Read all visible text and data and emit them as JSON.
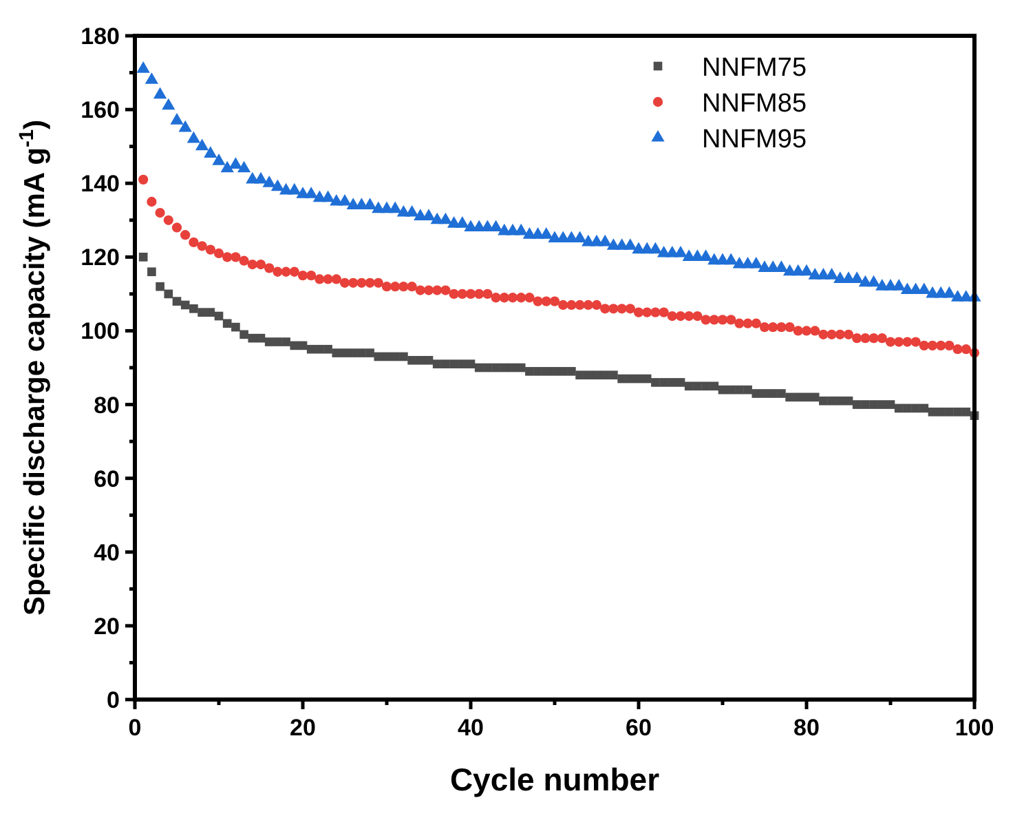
{
  "chart_data": {
    "type": "scatter",
    "xlabel": "Cycle number",
    "ylabel": "Specific discharge capacity (mA g$^{-1}$)",
    "xlim": [
      0,
      100
    ],
    "ylim": [
      0,
      180
    ],
    "xticks": [
      0,
      {
        "value": 10,
        "label": null
      },
      20,
      {
        "value": 30,
        "label": null
      },
      40,
      {
        "value": 50,
        "label": null
      },
      60,
      {
        "value": 70,
        "label": null
      },
      80,
      {
        "value": 90,
        "label": null
      },
      100
    ],
    "yticks": [
      0,
      {
        "value": 10,
        "label": null
      },
      20,
      {
        "value": 30,
        "label": null
      },
      40,
      {
        "value": 50,
        "label": null
      },
      60,
      {
        "value": 70,
        "label": null
      },
      80,
      {
        "value": 90,
        "label": null
      },
      100,
      {
        "value": 110,
        "label": null
      },
      120,
      {
        "value": 130,
        "label": null
      },
      140,
      {
        "value": 150,
        "label": null
      },
      160,
      {
        "value": 170,
        "label": null
      },
      180
    ],
    "grid": false,
    "legend": "top right",
    "x": [
      1,
      2,
      3,
      4,
      5,
      6,
      7,
      8,
      9,
      10,
      11,
      12,
      13,
      14,
      15,
      16,
      17,
      18,
      19,
      20,
      21,
      22,
      23,
      24,
      25,
      26,
      27,
      28,
      29,
      30,
      31,
      32,
      33,
      34,
      35,
      36,
      37,
      38,
      39,
      40,
      41,
      42,
      43,
      44,
      45,
      46,
      47,
      48,
      49,
      50,
      51,
      52,
      53,
      54,
      55,
      56,
      57,
      58,
      59,
      60,
      61,
      62,
      63,
      64,
      65,
      66,
      67,
      68,
      69,
      70,
      71,
      72,
      73,
      74,
      75,
      76,
      77,
      78,
      79,
      80,
      81,
      82,
      83,
      84,
      85,
      86,
      87,
      88,
      89,
      90,
      91,
      92,
      93,
      94,
      95,
      96,
      97,
      98,
      99,
      100
    ],
    "series": [
      {
        "name": "NNFM75",
        "color": "#4d4d4d",
        "marker": "square",
        "values": [
          120,
          116,
          112,
          110,
          108,
          107,
          106,
          105,
          105,
          104,
          102,
          101,
          99,
          98,
          98,
          97,
          97,
          97,
          96,
          96,
          95,
          95,
          95,
          94,
          94,
          94,
          94,
          94,
          93,
          93,
          93,
          93,
          92,
          92,
          92,
          91,
          91,
          91,
          91,
          91,
          90,
          90,
          90,
          90,
          90,
          90,
          89,
          89,
          89,
          89,
          89,
          89,
          88,
          88,
          88,
          88,
          88,
          87,
          87,
          87,
          87,
          86,
          86,
          86,
          86,
          85,
          85,
          85,
          85,
          84,
          84,
          84,
          84,
          83,
          83,
          83,
          83,
          82,
          82,
          82,
          82,
          81,
          81,
          81,
          81,
          80,
          80,
          80,
          80,
          80,
          79,
          79,
          79,
          79,
          78,
          78,
          78,
          78,
          78,
          77
        ]
      },
      {
        "name": "NNFM85",
        "color": "#e8403a",
        "marker": "circle",
        "values": [
          141,
          135,
          132,
          130,
          128,
          126,
          124,
          123,
          122,
          121,
          120,
          120,
          119,
          118,
          118,
          117,
          116,
          116,
          116,
          115,
          115,
          114,
          114,
          114,
          113,
          113,
          113,
          113,
          113,
          112,
          112,
          112,
          112,
          111,
          111,
          111,
          111,
          110,
          110,
          110,
          110,
          110,
          109,
          109,
          109,
          109,
          109,
          108,
          108,
          108,
          107,
          107,
          107,
          107,
          107,
          106,
          106,
          106,
          106,
          105,
          105,
          105,
          105,
          104,
          104,
          104,
          104,
          103,
          103,
          103,
          103,
          102,
          102,
          102,
          101,
          101,
          101,
          101,
          100,
          100,
          100,
          99,
          99,
          99,
          99,
          98,
          98,
          98,
          98,
          97,
          97,
          97,
          97,
          96,
          96,
          96,
          96,
          95,
          95,
          94
        ]
      },
      {
        "name": "NNFM95",
        "color": "#1f6fd6",
        "marker": "triangle",
        "values": [
          171,
          168,
          164,
          161,
          157,
          155,
          152,
          150,
          148,
          146,
          144,
          145,
          144,
          141,
          141,
          140,
          139,
          138,
          138,
          137,
          137,
          136,
          136,
          135,
          135,
          134,
          134,
          134,
          133,
          133,
          133,
          132,
          132,
          131,
          131,
          130,
          130,
          129,
          129,
          128,
          128,
          128,
          128,
          127,
          127,
          127,
          126,
          126,
          126,
          125,
          125,
          125,
          125,
          124,
          124,
          124,
          123,
          123,
          123,
          122,
          122,
          122,
          121,
          121,
          121,
          120,
          120,
          120,
          119,
          119,
          119,
          118,
          118,
          118,
          117,
          117,
          117,
          116,
          116,
          116,
          115,
          115,
          115,
          114,
          114,
          114,
          113,
          113,
          112,
          112,
          112,
          111,
          111,
          111,
          110,
          110,
          110,
          109,
          109,
          109
        ]
      }
    ]
  }
}
